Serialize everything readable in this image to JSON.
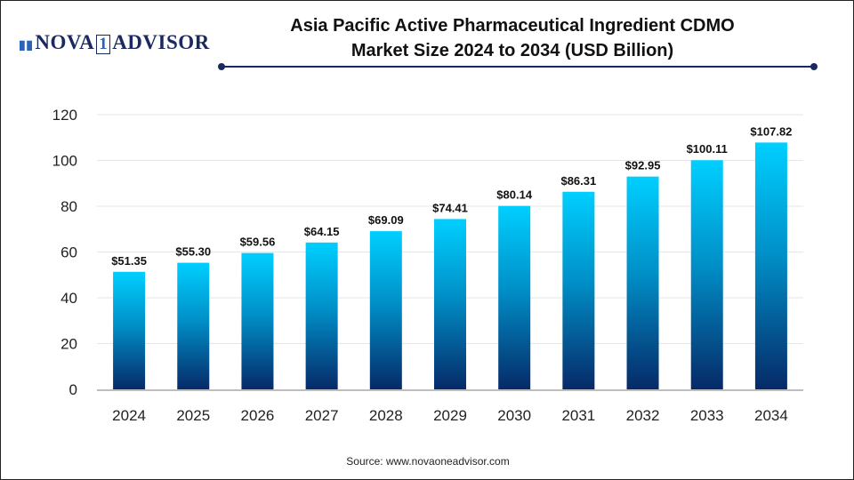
{
  "logo": {
    "text_main": "NOVA",
    "text_num": "1",
    "text_end": "ADVISOR"
  },
  "title_line1": "Asia Pacific Active Pharmaceutical Ingredient CDMO",
  "title_line2": "Market Size 2024 to 2034 (USD Billion)",
  "source": "Source: www.novaoneadvisor.com",
  "colors": {
    "bar_top": "#00CFFF",
    "bar_bottom": "#062A68",
    "accent": "#1B2A5E"
  },
  "chart_data": {
    "type": "bar",
    "title": "Asia Pacific Active Pharmaceutical Ingredient CDMO Market Size 2024 to 2034 (USD Billion)",
    "categories": [
      "2024",
      "2025",
      "2026",
      "2027",
      "2028",
      "2029",
      "2030",
      "2031",
      "2032",
      "2033",
      "2034"
    ],
    "values": [
      51.35,
      55.3,
      59.56,
      64.15,
      69.09,
      74.41,
      80.14,
      86.31,
      92.95,
      100.11,
      107.82
    ],
    "data_labels": [
      "$51.35",
      "$55.30",
      "$59.56",
      "$64.15",
      "$69.09",
      "$74.41",
      "$80.14",
      "$86.31",
      "$92.95",
      "$100.11",
      "$107.82"
    ],
    "ylim": [
      0,
      120
    ],
    "yticks": [
      0,
      20,
      40,
      60,
      80,
      100,
      120
    ],
    "grid": true,
    "legend": "none"
  }
}
